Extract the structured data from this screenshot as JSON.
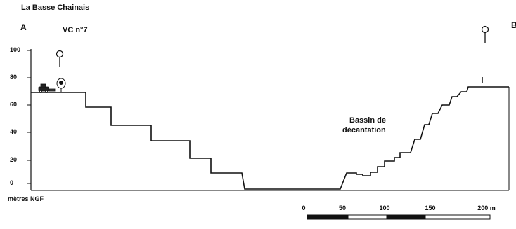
{
  "figure": {
    "site_title": "La Basse Chainais",
    "point_a": "A",
    "point_b": "B",
    "vc_label": "VC n°7",
    "basin_label_line1": "Bassin de",
    "basin_label_line2": "décantation",
    "y_unit_label": "mètres NGF"
  },
  "y_axis": {
    "ticks": [
      "100",
      "80",
      "60",
      "40",
      "20",
      "0"
    ]
  },
  "scale_bar": {
    "ticks": [
      "0",
      "50",
      "100",
      "150",
      "200 m"
    ]
  },
  "icons": [
    "tree-symbol-icon",
    "vehicle-icon",
    "survey-marker-icon"
  ],
  "colors": {
    "ink": "#111111",
    "background": "#ffffff"
  }
}
